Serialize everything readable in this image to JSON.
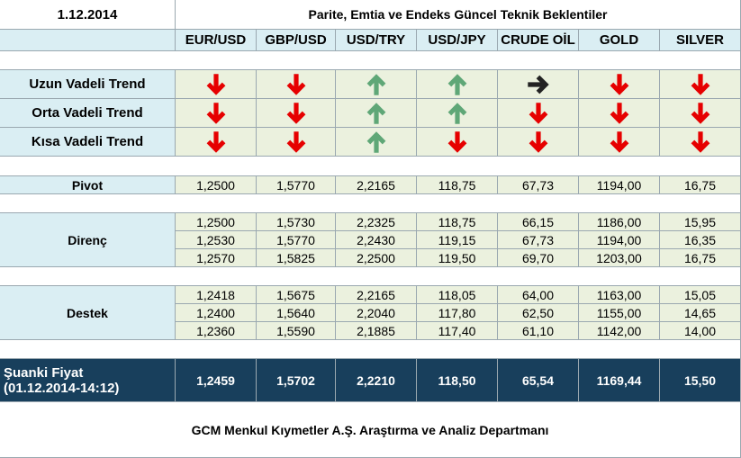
{
  "header": {
    "date": "1.12.2014",
    "title": "Parite, Emtia ve Endeks Güncel Teknik Beklentiler"
  },
  "columns": [
    "EUR/USD",
    "GBP/USD",
    "USD/TRY",
    "USD/JPY",
    "CRUDE OİL",
    "GOLD",
    "SILVER"
  ],
  "trends": [
    "Uzun Vadeli Trend",
    "Orta Vadeli Trend",
    "Kısa Vadeli Trend"
  ],
  "pivot": {
    "label": "Pivot",
    "values": [
      "1,2500",
      "1,5770",
      "2,2165",
      "118,75",
      "67,73",
      "1194,00",
      "16,75"
    ]
  },
  "resistance": {
    "label": "Direnç",
    "rows": [
      [
        "1,2500",
        "1,5730",
        "2,2325",
        "118,75",
        "66,15",
        "1186,00",
        "15,95"
      ],
      [
        "1,2530",
        "1,5770",
        "2,2430",
        "119,15",
        "67,73",
        "1194,00",
        "16,35"
      ],
      [
        "1,2570",
        "1,5825",
        "2,2500",
        "119,50",
        "69,70",
        "1203,00",
        "16,75"
      ]
    ]
  },
  "support": {
    "label": "Destek",
    "rows": [
      [
        "1,2418",
        "1,5675",
        "2,2165",
        "118,05",
        "64,00",
        "1163,00",
        "15,05"
      ],
      [
        "1,2400",
        "1,5640",
        "2,2040",
        "117,80",
        "62,50",
        "1155,00",
        "14,65"
      ],
      [
        "1,2360",
        "1,5590",
        "2,1885",
        "117,40",
        "61,10",
        "1142,00",
        "14,00"
      ]
    ]
  },
  "current": {
    "label": "Şuanki Fiyat",
    "time": "(01.12.2014-14:12)",
    "values": [
      "1,2459",
      "1,5702",
      "2,2210",
      "118,50",
      "65,54",
      "1169,44",
      "15,50"
    ]
  },
  "footer": "GCM Menkul Kıymetler A.Ş. Araştırma ve Analiz Departmanı"
}
